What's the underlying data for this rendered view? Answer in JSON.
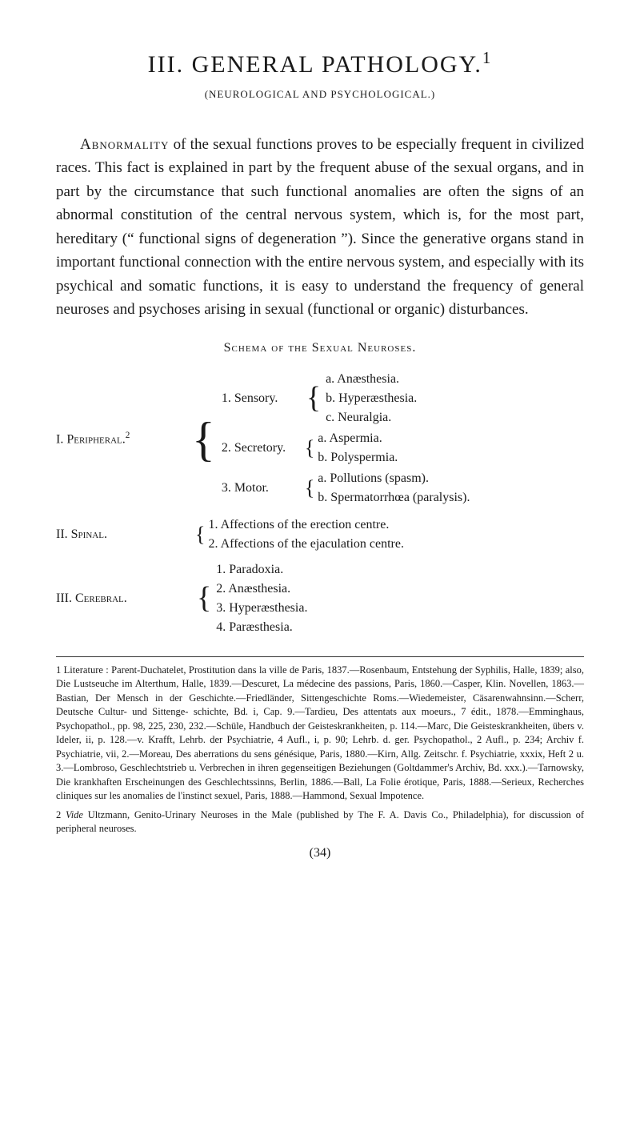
{
  "chapter": {
    "title": "III. GENERAL PATHOLOGY.",
    "title_sup": "1",
    "subtitle": "(NEUROLOGICAL AND PSYCHOLOGICAL.)"
  },
  "paragraphs": {
    "p1_lead": "Abnormality",
    "p1_rest": " of the sexual functions proves to be especially frequent in civilized races. This fact is explained in part by the frequent abuse of the sexual organs, and in part by the circumstance that such functional anomalies are often the signs of an abnormal constitution of the central nervous system, which is, for the most part, hereditary (“ functional signs of degeneration ”). Since the generative organs stand in important functional connection with the entire nervous system, and especially with its psychical and somatic functions, it is easy to understand the frequency of general neuroses and psychoses arising in sexual (functional or organic) disturbances."
  },
  "schema": {
    "title": "Schema of the Sexual Neuroses.",
    "groups": [
      {
        "label": "I. Peripheral.",
        "label_sup": "2",
        "subs": [
          {
            "label": "1. Sensory.",
            "items": [
              "a. Anæsthesia.",
              "b. Hyperæsthesia.",
              "c. Neuralgia."
            ]
          },
          {
            "label": "2. Secretory.",
            "items": [
              "a. Aspermia.",
              "b. Polyspermia."
            ]
          },
          {
            "label": "3. Motor.",
            "items": [
              "a. Pollutions (spasm).",
              "b. Spermatorrhœa (paralysis)."
            ]
          }
        ]
      },
      {
        "label": "II. Spinal.",
        "items": [
          "1. Affections of the erection centre.",
          "2. Affections of the ejaculation centre."
        ]
      },
      {
        "label": "III. Cerebral.",
        "items": [
          "1. Paradoxia.",
          "2. Anæsthesia.",
          "3. Hyperæsthesia.",
          "4. Paræsthesia."
        ]
      }
    ]
  },
  "footnotes": {
    "fn1": "1 Literature : Parent-Duchatelet, Prostitution dans la ville de Paris, 1837.—Rosenbaum, Entstehung der Syphilis, Halle, 1839; also, Die Lustseuche im Alterthum, Halle, 1839.—Descuret, La médecine des passions, Paris, 1860.—Casper, Klin. Novellen, 1863.—Bastian, Der Mensch in der Geschichte.—Friedländer, Sittengeschichte Roms.—Wiedemeister, Cäsarenwahnsinn.—Scherr, Deutsche Cultur- und Sittenge- schichte, Bd. i, Cap. 9.—Tardieu, Des attentats aux moeurs., 7 édit., 1878.—Emminghaus, Psychopathol., pp. 98, 225, 230, 232.—Schüle, Handbuch der Geisteskrankheiten, p. 114.—Marc, Die Geisteskrankheiten, übers v. Ideler, ii, p. 128.—v. Krafft, Lehrb. der Psychiatrie, 4 Aufl., i, p. 90; Lehrb. d. ger. Psychopathol., 2 Aufl., p. 234; Archiv f. Psychiatrie, vii, 2.—Moreau, Des aberrations du sens génésique, Paris, 1880.—Kirn, Allg. Zeitschr. f. Psychiatrie, xxxix, Heft 2 u. 3.—Lombroso, Geschlechtstrieb u. Verbrechen in ihren gegenseitigen Beziehungen (Goltdammer's Archiv, Bd. xxx.).—Tarnowsky, Die krankhaften Erscheinungen des Geschlechtssinns, Berlin, 1886.—Ball, La Folie érotique, Paris, 1888.—Serieux, Recherches cliniques sur les anomalies de l'instinct sexuel, Paris, 1888.—Hammond, Sexual Impotence.",
    "fn2_lead": "2 ",
    "fn2_italic": "Vide",
    "fn2_rest": " Ultzmann, Genito-Urinary Neuroses in the Male (published by The F. A. Davis Co., Philadelphia), for discussion of peripheral neuroses.",
    "page_number": "(34)"
  },
  "style": {
    "page_bg": "#ffffff",
    "text_color": "#1a1a1a",
    "body_font_size": 19,
    "footnote_font_size": 12.5,
    "title_font_size": 30
  }
}
